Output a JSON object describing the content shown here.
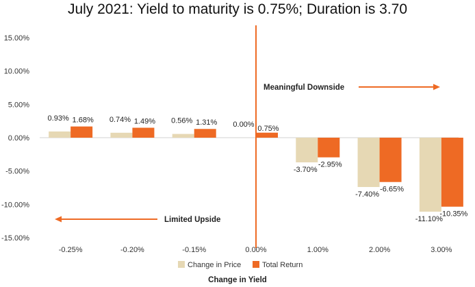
{
  "chart_data": {
    "type": "bar",
    "title": "July 2021: Yield to maturity is 0.75%; Duration is 3.70",
    "xlabel": "Change in Yield",
    "ylabel": "",
    "categories": [
      "-0.25%",
      "-0.20%",
      "-0.15%",
      "0.00%",
      "1.00%",
      "2.00%",
      "3.00%"
    ],
    "series": [
      {
        "name": "Change in Price",
        "color": "#e6d8b4",
        "values": [
          0.93,
          0.74,
          0.56,
          0.0,
          -3.7,
          -7.4,
          -11.1
        ],
        "labels": [
          "0.93%",
          "0.74%",
          "0.56%",
          "0.00%",
          "-3.70%",
          "-7.40%",
          "-11.10%"
        ]
      },
      {
        "name": "Total Return",
        "color": "#ee6a24",
        "values": [
          1.68,
          1.49,
          1.31,
          0.75,
          -2.95,
          -6.65,
          -10.35
        ],
        "labels": [
          "1.68%",
          "1.49%",
          "1.31%",
          "0.75%",
          "-2.95%",
          "-6.65%",
          "-10.35%"
        ]
      }
    ],
    "ylim": [
      -15,
      15
    ],
    "yticks": [
      15,
      10,
      5,
      0,
      -5,
      -10,
      -15
    ],
    "ytick_labels": [
      "15.00%",
      "10.00%",
      "5.00%",
      "0.00%",
      "-5.00%",
      "-10.00%",
      "-15.00%"
    ],
    "grid": false,
    "legend_position": "bottom",
    "divider_after_category": "0.00%",
    "annotations": [
      {
        "text": "Meaningful Downside",
        "arrow": "right"
      },
      {
        "text": "Limited Upside",
        "arrow": "left"
      }
    ],
    "accent_color": "#ee6a24"
  }
}
